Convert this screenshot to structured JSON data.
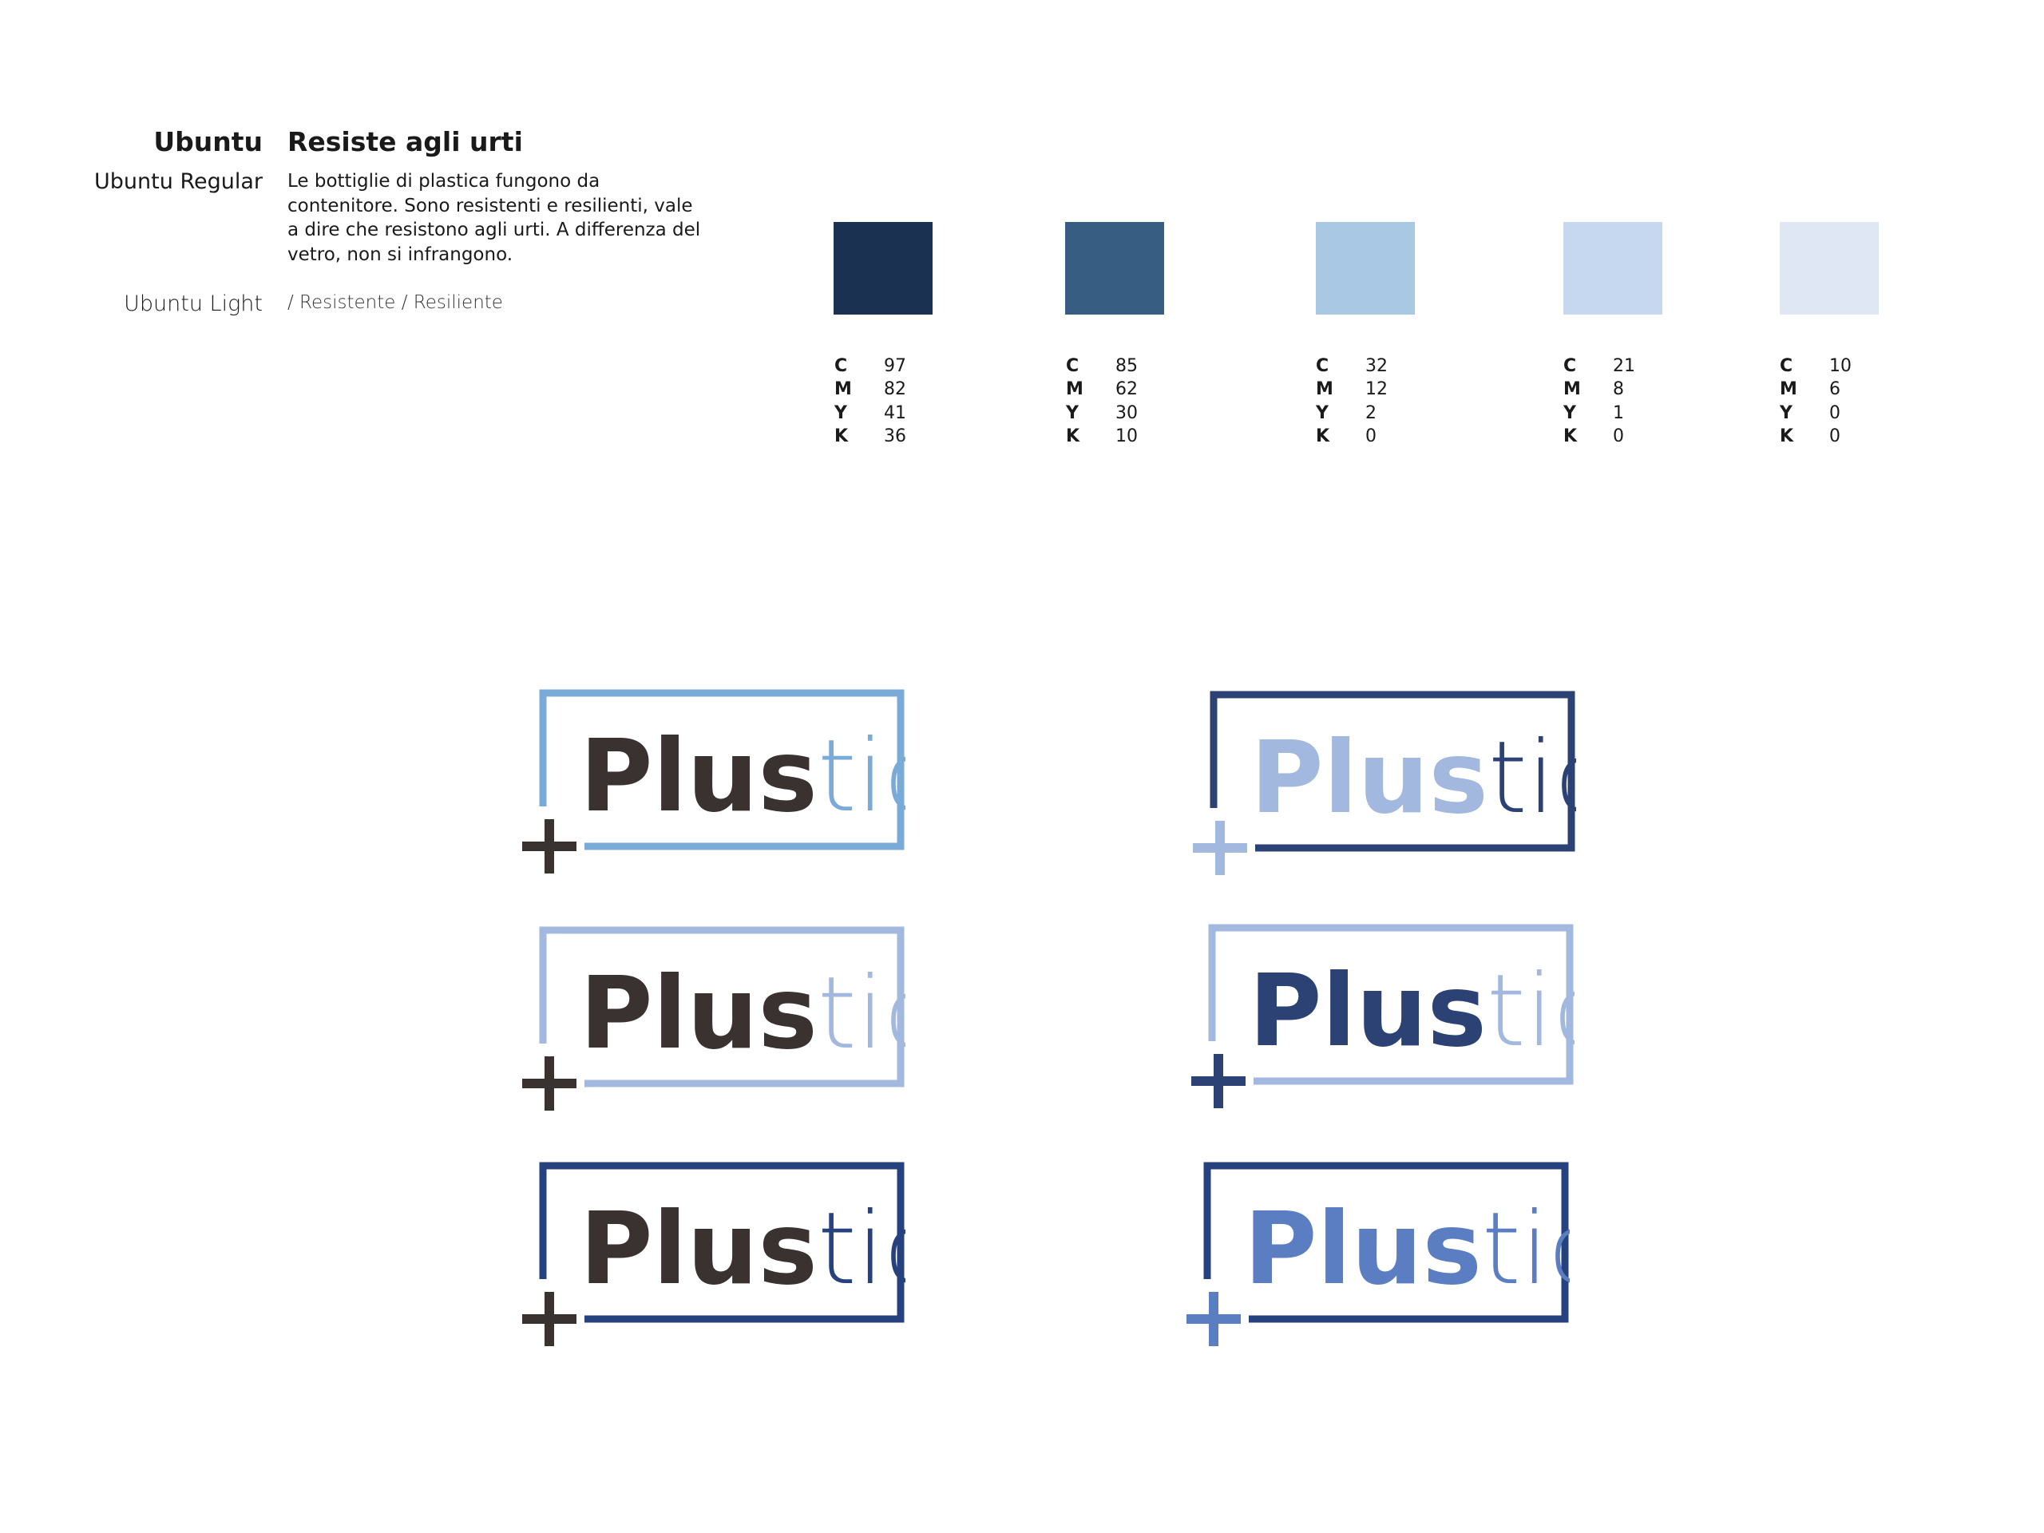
{
  "typography": {
    "font_name": "Ubuntu",
    "heading": "Resiste agli urti",
    "regular_label": "Ubuntu  Regular",
    "body": "Le bottiglie di plastica fungono da contenitore. Sono resistenti e resilienti, vale a dire che resistono agli urti. A differenza del vetro, non si infrangono.",
    "light_label": "Ubuntu  Light",
    "keywords": "/ Resistente / Resiliente"
  },
  "palette": [
    {
      "color": "#1a3152",
      "C": "97",
      "M": "82",
      "Y": "41",
      "K": "36"
    },
    {
      "color": "#375d82",
      "C": "85",
      "M": "62",
      "Y": "30",
      "K": "10"
    },
    {
      "color": "#a9c8e3",
      "C": "32",
      "M": "12",
      "Y": "2",
      "K": "0"
    },
    {
      "color": "#c5d8ef",
      "C": "21",
      "M": "8",
      "Y": "1",
      "K": "0"
    },
    {
      "color": "#dfe6f4",
      "C": "10",
      "M": "6",
      "Y": "0",
      "K": "0"
    }
  ],
  "cmyk_letters": [
    "C",
    "M",
    "Y",
    "K"
  ],
  "logo_word": {
    "bold": "Plus",
    "light": "tic"
  },
  "logo_variants": [
    {
      "frame": "#7aaad8",
      "plus": "#3a3131",
      "bold": "#3a3131",
      "light": "#7aaad8"
    },
    {
      "frame": "#2c4275",
      "plus": "#a2b8de",
      "bold": "#a2b8de",
      "light": "#2c4275"
    },
    {
      "frame": "#a2b8de",
      "plus": "#3a3131",
      "bold": "#3a3131",
      "light": "#a2b8de"
    },
    {
      "frame": "#a2b8de",
      "plus": "#2c4275",
      "bold": "#2c4275",
      "light": "#a2b8de"
    },
    {
      "frame": "#25417e",
      "plus": "#3a3131",
      "bold": "#3a3131",
      "light": "#25417e"
    },
    {
      "frame": "#25417e",
      "plus": "#5b7ec2",
      "bold": "#5b7ec2",
      "light": "#5b7ec2"
    }
  ]
}
